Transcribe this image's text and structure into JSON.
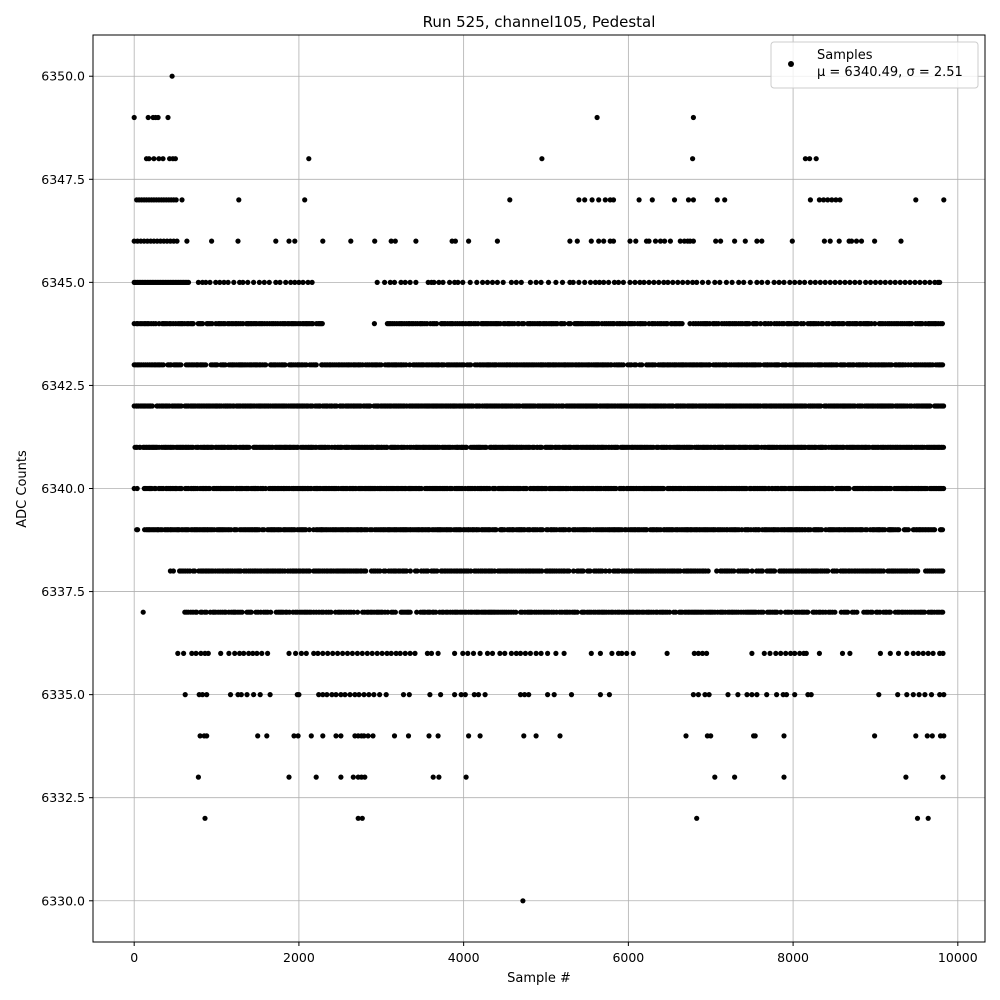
{
  "chart_data": {
    "type": "scatter",
    "title": "Run 525, channel105, Pedestal",
    "xlabel": "Sample #",
    "ylabel": "ADC Counts",
    "xlim": [
      -500,
      10330
    ],
    "ylim": [
      6329.0,
      6351.0
    ],
    "x_ticks": [
      0,
      2000,
      4000,
      6000,
      8000,
      10000
    ],
    "y_ticks": [
      6330.0,
      6332.5,
      6335.0,
      6337.5,
      6340.0,
      6342.5,
      6345.0,
      6347.5,
      6350.0
    ],
    "x_tick_labels": [
      "0",
      "2000",
      "4000",
      "6000",
      "8000",
      "10000"
    ],
    "y_tick_labels": [
      "6330.0",
      "6332.5",
      "6335.0",
      "6337.5",
      "6340.0",
      "6342.5",
      "6345.0",
      "6347.5",
      "6350.0"
    ],
    "grid": true,
    "legend_position": "top-right",
    "marker_color": "#000000",
    "series": [
      {
        "name": "Samples",
        "n_samples": 9850,
        "mean": 6340.49,
        "sigma": 2.51,
        "rows": [
          {
            "y": 6350,
            "x": [
              460
            ]
          },
          {
            "y": 6349,
            "x": [
              0,
              170,
              230,
              260,
              290,
              410,
              5620,
              6790
            ]
          },
          {
            "y": 6348,
            "x": [
              150,
              180,
              240,
              300,
              350,
              430,
              470,
              500,
              2120,
              4950,
              6780,
              8150,
              8200,
              8280
            ]
          },
          {
            "y": 6347,
            "x": [
              30,
              60,
              90,
              120,
              150,
              180,
              210,
              240,
              270,
              300,
              330,
              360,
              390,
              420,
              450,
              480,
              510,
              580,
              1270,
              2070,
              4560,
              5400,
              5470,
              5560,
              5640,
              5720,
              5780,
              5820,
              6130,
              6290,
              6560,
              6730,
              6790,
              7080,
              7170,
              8210,
              8320,
              8370,
              8420,
              8470,
              8520,
              8570,
              9490,
              9830
            ]
          },
          {
            "y": 6346,
            "x": [
              0,
              40,
              80,
              120,
              160,
              200,
              240,
              280,
              320,
              360,
              400,
              440,
              480,
              520,
              640,
              940,
              1260,
              1720,
              1880,
              1950,
              2290,
              2630,
              2920,
              3120,
              3170,
              3420,
              3860,
              3900,
              4060,
              4410,
              5290,
              5380,
              5550,
              5640,
              5700,
              5780,
              5820,
              6020,
              6090,
              6220,
              6250,
              6330,
              6390,
              6440,
              6510,
              6630,
              6680,
              6720,
              6750,
              6790,
              7060,
              7120,
              7290,
              7420,
              7560,
              7620,
              7990,
              8380,
              8450,
              8560,
              8680,
              8710,
              8770,
              8830,
              8990,
              9310
            ]
          },
          {
            "y": 6345,
            "x": [
              0,
              20,
              40,
              60,
              80,
              100,
              120,
              140,
              160,
              180,
              200,
              220,
              240,
              260,
              280,
              300,
              320,
              340,
              360,
              380,
              400,
              420,
              440,
              460,
              480,
              500,
              520,
              540,
              560,
              580,
              600,
              620,
              640,
              660,
              780,
              830,
              870,
              920,
              990,
              1040,
              1090,
              1140,
              1210,
              1280,
              1320,
              1380,
              1450,
              1520,
              1580,
              1640,
              1720,
              1770,
              1840,
              1900,
              1950,
              2000,
              2050,
              2110,
              2160,
              2950,
              3040,
              3110,
              3160,
              3240,
              3290,
              3350,
              3420,
              3570,
              3610,
              3640,
              3700,
              3750,
              3830,
              3890,
              3930,
              3990,
              4080,
              4160,
              4230,
              4290,
              4350,
              4410,
              4480,
              4580,
              4640,
              4700,
              4810,
              4880,
              4940,
              5030,
              5120,
              5200,
              5290,
              5330,
              5400,
              5470,
              5540,
              5600,
              5650,
              5700,
              5760,
              5830,
              5880,
              5940,
              6020,
              6080,
              6140,
              6190,
              6250,
              6310,
              6370,
              6430,
              6480,
              6540,
              6600,
              6660,
              6720,
              6780,
              6830,
              6900,
              6970,
              7050,
              7110,
              7190,
              7260,
              7340,
              7400,
              7480,
              7560,
              7620,
              7690,
              7770,
              7830,
              7890,
              7960,
              8020,
              8080,
              8140,
              8210,
              8270,
              8330,
              8390,
              8450,
              8510,
              8570,
              8630,
              8690,
              8750,
              8810,
              8880,
              8940,
              9000,
              9060,
              9120,
              9180,
              9240,
              9300,
              9360,
              9420,
              9480,
              9540,
              9600,
              9660,
              9720,
              9760,
              9780
            ]
          },
          {
            "y": 6344,
            "x": []
          },
          {
            "y": 6343,
            "x": []
          },
          {
            "y": 6342,
            "x": []
          },
          {
            "y": 6341,
            "x": []
          },
          {
            "y": 6340,
            "x": []
          },
          {
            "y": 6339,
            "x": []
          },
          {
            "y": 6338,
            "x": []
          },
          {
            "y": 6337,
            "x": []
          },
          {
            "y": 6336,
            "x": [
              530,
              600,
              700,
              750,
              810,
              860,
              900,
              1050,
              1150,
              1220,
              1280,
              1330,
              1390,
              1440,
              1490,
              1550,
              1620,
              1880,
              1960,
              2030,
              2090,
              2180,
              2230,
              2290,
              2350,
              2410,
              2470,
              2530,
              2590,
              2650,
              2710,
              2770,
              2830,
              2890,
              2950,
              3010,
              3070,
              3120,
              3180,
              3230,
              3290,
              3350,
              3410,
              3560,
              3610,
              3690,
              3890,
              3990,
              4050,
              4120,
              4200,
              4290,
              4350,
              4440,
              4500,
              4580,
              4640,
              4690,
              4750,
              4810,
              4880,
              4940,
              5020,
              5120,
              5220,
              5550,
              5660,
              5800,
              5880,
              5920,
              5980,
              6060,
              6470,
              6800,
              6850,
              6900,
              6950,
              7500,
              7650,
              7720,
              7790,
              7850,
              7910,
              7970,
              8020,
              8080,
              8130,
              8160,
              8320,
              8600,
              8690,
              9060,
              9180,
              9280,
              9380,
              9460,
              9520,
              9580,
              9640,
              9700,
              9780,
              9820
            ]
          },
          {
            "y": 6335,
            "x": [
              620,
              790,
              830,
              880,
              1170,
              1260,
              1300,
              1370,
              1450,
              1530,
              1650,
              1980,
              2000,
              2240,
              2290,
              2340,
              2400,
              2450,
              2510,
              2560,
              2620,
              2680,
              2730,
              2790,
              2850,
              2910,
              2980,
              3060,
              3270,
              3340,
              3590,
              3720,
              3890,
              3970,
              4020,
              4130,
              4180,
              4260,
              4690,
              4740,
              4790,
              5020,
              5100,
              5310,
              5660,
              5770,
              6790,
              6850,
              6930,
              6980,
              7210,
              7330,
              7440,
              7500,
              7560,
              7680,
              7800,
              7880,
              7920,
              8020,
              8180,
              8220,
              9040,
              9270,
              9380,
              9460,
              9530,
              9600,
              9680,
              9780,
              9830
            ]
          },
          {
            "y": 6334,
            "x": [
              800,
              850,
              880,
              1500,
              1610,
              1940,
              1990,
              2150,
              2290,
              2450,
              2510,
              2680,
              2720,
              2760,
              2790,
              2840,
              2900,
              3160,
              3330,
              3580,
              3690,
              4060,
              4200,
              4730,
              4880,
              5170,
              6700,
              6960,
              7000,
              7520,
              7540,
              7890,
              8990,
              9490,
              9630,
              9690,
              9790,
              9830
            ]
          },
          {
            "y": 6333,
            "x": [
              780,
              1880,
              2210,
              2510,
              2660,
              2720,
              2760,
              2800,
              3630,
              3700,
              4030,
              7050,
              7290,
              7890,
              9370,
              9820
            ]
          },
          {
            "y": 6332,
            "x": [
              860,
              2720,
              2770,
              6830,
              9510,
              9640
            ]
          },
          {
            "y": 6330,
            "x": [
              4720
            ]
          }
        ],
        "dense_rows": [
          {
            "y": 6344,
            "start": 0,
            "end": 9830,
            "gaps": [
              [
                2300,
                2900
              ],
              [
                2930,
                3060
              ]
            ],
            "step": 22
          },
          {
            "y": 6343,
            "start": 0,
            "end": 9830,
            "gaps": [],
            "step": 18
          },
          {
            "y": 6342,
            "start": 0,
            "end": 9830,
            "gaps": [],
            "step": 14
          },
          {
            "y": 6341,
            "start": 0,
            "end": 9830,
            "gaps": [],
            "step": 14
          },
          {
            "y": 6340,
            "start": 0,
            "end": 9830,
            "gaps": [
              [
                40,
                110
              ]
            ],
            "step": 14
          },
          {
            "y": 6339,
            "start": 30,
            "end": 9830,
            "gaps": [
              [
                50,
                120
              ]
            ],
            "step": 16
          },
          {
            "y": 6338,
            "start": 440,
            "end": 9830,
            "gaps": [],
            "step": 22
          },
          {
            "y": 6337,
            "start": 110,
            "end": 9830,
            "gaps": [
              [
                130,
                600
              ]
            ],
            "step": 24
          }
        ]
      }
    ],
    "legend": {
      "label": "Samples",
      "stats": "μ = 6340.49, σ = 2.51"
    }
  }
}
